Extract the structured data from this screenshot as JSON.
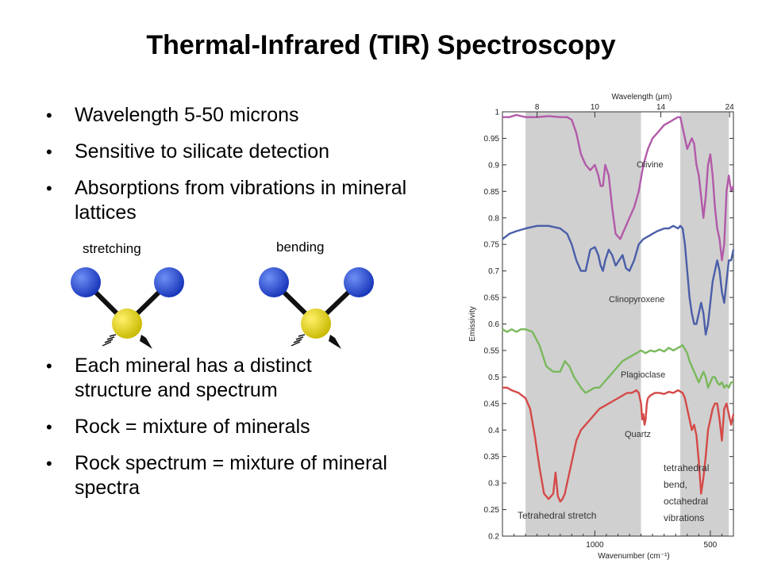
{
  "slide": {
    "title": "Thermal-Infrared (TIR) Spectroscopy",
    "bullets_top": [
      "Wavelength 5-50 microns",
      "Sensitive to silicate detection",
      "Absorptions from vibrations in mineral lattices"
    ],
    "bullets_bottom": [
      "Each mineral has a distinct structure and spectrum",
      "Rock = mixture of minerals",
      "Rock spectrum = mixture of mineral spectra"
    ],
    "molecule_labels": {
      "stretching": "stretching",
      "bending": "bending"
    },
    "colors": {
      "outer_atom": "#1f4fd8",
      "center_atom": "#e0d000",
      "band": "#d0d0d0"
    }
  },
  "chart_data": {
    "type": "line",
    "xlabel": "Wavenumber (cm⁻¹)",
    "x2label": "Wavelength (μm)",
    "ylabel": "Emissivity",
    "xlim": [
      1400,
      400
    ],
    "xscale": "reversed",
    "ylim": [
      0.2,
      1.0
    ],
    "yticks": [
      "0.2",
      "0.25",
      "0.3",
      "0.35",
      "0.4",
      "0.45",
      "0.5",
      "0.55",
      "0.6",
      "0.65",
      "0.7",
      "0.75",
      "0.8",
      "0.85",
      "0.9",
      "0.95",
      "1"
    ],
    "xticks": [
      {
        "value": 1000,
        "label": "1000"
      },
      {
        "value": 500,
        "label": "500"
      }
    ],
    "x2ticks": [
      {
        "value": 8,
        "label": "8"
      },
      {
        "value": 10,
        "label": "10"
      },
      {
        "value": 14,
        "label": "14"
      },
      {
        "value": 24,
        "label": "24"
      }
    ],
    "bands": [
      {
        "from": 1300,
        "to": 800,
        "label": "Tetrahedral stretch"
      },
      {
        "from": 630,
        "to": 420,
        "label": "tetrahedral bend, octahedral vibrations"
      }
    ],
    "series": [
      {
        "name": "Olivine",
        "color": "#b25aa8",
        "x": [
          1400,
          1370,
          1340,
          1300,
          1250,
          1200,
          1150,
          1120,
          1100,
          1080,
          1060,
          1040,
          1020,
          1000,
          985,
          975,
          965,
          955,
          940,
          925,
          910,
          890,
          870,
          850,
          830,
          810,
          790,
          770,
          750,
          730,
          700,
          680,
          660,
          640,
          630,
          620,
          610,
          600,
          590,
          580,
          570,
          560,
          550,
          540,
          530,
          520,
          510,
          500,
          490,
          480,
          470,
          460,
          450,
          440,
          430,
          420,
          410,
          400
        ],
        "y": [
          0.99,
          0.99,
          0.994,
          0.99,
          0.99,
          0.992,
          0.99,
          0.99,
          0.985,
          0.96,
          0.92,
          0.9,
          0.89,
          0.9,
          0.88,
          0.86,
          0.86,
          0.9,
          0.88,
          0.82,
          0.77,
          0.76,
          0.78,
          0.8,
          0.82,
          0.85,
          0.9,
          0.93,
          0.95,
          0.96,
          0.975,
          0.98,
          0.985,
          0.99,
          0.99,
          0.97,
          0.95,
          0.93,
          0.94,
          0.95,
          0.94,
          0.9,
          0.88,
          0.84,
          0.8,
          0.84,
          0.9,
          0.92,
          0.88,
          0.82,
          0.78,
          0.76,
          0.72,
          0.75,
          0.85,
          0.88,
          0.85,
          0.86
        ]
      },
      {
        "name": "Clinopyroxene",
        "color": "#4a5ea8",
        "x": [
          1400,
          1370,
          1340,
          1300,
          1250,
          1200,
          1150,
          1120,
          1100,
          1080,
          1060,
          1040,
          1020,
          1000,
          985,
          975,
          965,
          955,
          940,
          925,
          910,
          895,
          880,
          865,
          850,
          830,
          810,
          790,
          770,
          750,
          730,
          700,
          680,
          660,
          640,
          630,
          620,
          610,
          600,
          590,
          580,
          570,
          560,
          550,
          540,
          530,
          520,
          510,
          500,
          490,
          480,
          470,
          460,
          450,
          440,
          430,
          420,
          410,
          400
        ],
        "y": [
          0.76,
          0.77,
          0.775,
          0.78,
          0.785,
          0.785,
          0.78,
          0.77,
          0.75,
          0.72,
          0.7,
          0.7,
          0.74,
          0.745,
          0.73,
          0.71,
          0.7,
          0.72,
          0.74,
          0.73,
          0.71,
          0.72,
          0.73,
          0.705,
          0.7,
          0.72,
          0.75,
          0.76,
          0.765,
          0.77,
          0.775,
          0.78,
          0.78,
          0.785,
          0.78,
          0.785,
          0.78,
          0.75,
          0.7,
          0.65,
          0.62,
          0.6,
          0.6,
          0.62,
          0.64,
          0.62,
          0.58,
          0.6,
          0.64,
          0.68,
          0.7,
          0.72,
          0.7,
          0.66,
          0.64,
          0.68,
          0.72,
          0.72,
          0.74
        ]
      },
      {
        "name": "Plagioclase",
        "color": "#7ab85c",
        "x": [
          1400,
          1380,
          1360,
          1340,
          1320,
          1300,
          1270,
          1240,
          1210,
          1180,
          1150,
          1130,
          1110,
          1090,
          1060,
          1040,
          1020,
          1000,
          980,
          960,
          940,
          920,
          900,
          880,
          860,
          840,
          820,
          800,
          780,
          760,
          740,
          720,
          700,
          680,
          660,
          640,
          620,
          600,
          590,
          580,
          570,
          560,
          550,
          540,
          530,
          520,
          510,
          500,
          490,
          480,
          470,
          460,
          450,
          440,
          430,
          420,
          410,
          400
        ],
        "y": [
          0.59,
          0.585,
          0.59,
          0.585,
          0.59,
          0.59,
          0.585,
          0.56,
          0.52,
          0.51,
          0.51,
          0.53,
          0.52,
          0.5,
          0.48,
          0.47,
          0.475,
          0.48,
          0.48,
          0.49,
          0.5,
          0.51,
          0.52,
          0.53,
          0.535,
          0.54,
          0.545,
          0.55,
          0.545,
          0.55,
          0.548,
          0.552,
          0.548,
          0.555,
          0.55,
          0.555,
          0.56,
          0.545,
          0.53,
          0.52,
          0.51,
          0.5,
          0.49,
          0.5,
          0.51,
          0.5,
          0.48,
          0.49,
          0.5,
          0.5,
          0.49,
          0.485,
          0.49,
          0.48,
          0.485,
          0.48,
          0.49,
          0.49
        ]
      },
      {
        "name": "Quartz",
        "color": "#d44a48",
        "x": [
          1400,
          1380,
          1360,
          1330,
          1300,
          1280,
          1260,
          1240,
          1220,
          1200,
          1180,
          1170,
          1160,
          1150,
          1140,
          1130,
          1120,
          1110,
          1100,
          1090,
          1080,
          1060,
          1040,
          1020,
          1000,
          980,
          960,
          940,
          920,
          900,
          880,
          860,
          840,
          820,
          810,
          800,
          795,
          790,
          785,
          780,
          775,
          770,
          760,
          740,
          720,
          700,
          680,
          660,
          640,
          620,
          610,
          600,
          590,
          580,
          570,
          560,
          550,
          540,
          530,
          520,
          510,
          500,
          490,
          480,
          470,
          460,
          450,
          440,
          430,
          420,
          410,
          400
        ],
        "y": [
          0.48,
          0.48,
          0.475,
          0.47,
          0.46,
          0.44,
          0.39,
          0.33,
          0.28,
          0.27,
          0.28,
          0.32,
          0.275,
          0.265,
          0.27,
          0.28,
          0.3,
          0.32,
          0.34,
          0.36,
          0.38,
          0.4,
          0.41,
          0.42,
          0.43,
          0.44,
          0.445,
          0.45,
          0.455,
          0.46,
          0.465,
          0.47,
          0.47,
          0.475,
          0.47,
          0.45,
          0.42,
          0.43,
          0.41,
          0.42,
          0.45,
          0.46,
          0.465,
          0.47,
          0.47,
          0.468,
          0.472,
          0.47,
          0.475,
          0.47,
          0.46,
          0.44,
          0.42,
          0.4,
          0.41,
          0.39,
          0.34,
          0.28,
          0.31,
          0.35,
          0.4,
          0.42,
          0.44,
          0.45,
          0.45,
          0.42,
          0.38,
          0.44,
          0.45,
          0.43,
          0.41,
          0.43
        ]
      }
    ]
  }
}
